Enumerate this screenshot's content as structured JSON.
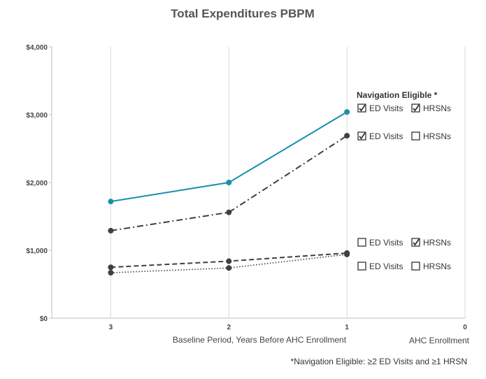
{
  "chart_data": {
    "type": "line",
    "title": "Total Expenditures PBPM",
    "xlabel": "Baseline Period, Years Before AHC Enrollment",
    "xlabel_secondary": "AHC Enrollment",
    "x_ticks": [
      "3",
      "2",
      "1",
      "0"
    ],
    "x_values": [
      3,
      2,
      1
    ],
    "xlim": [
      3.5,
      0
    ],
    "ylim": [
      0,
      4000
    ],
    "y_ticks": [
      {
        "value": 0,
        "label": "$0"
      },
      {
        "value": 1000,
        "label": "$1,000"
      },
      {
        "value": 2000,
        "label": "$2,000"
      },
      {
        "value": 3000,
        "label": "$3,000"
      },
      {
        "value": 4000,
        "label": "$4,000"
      }
    ],
    "grid": "vertical",
    "legend_title": "Navigation Eligible *",
    "series": [
      {
        "name": "ED Visits + HRSNs",
        "ed_visits": true,
        "hrsns": true,
        "style": "solid",
        "color": "#1a8fae",
        "values": [
          1720,
          2000,
          3040
        ],
        "legend": {
          "ed": "ED Visits",
          "hrsn": "HRSNs"
        }
      },
      {
        "name": "ED Visits only",
        "ed_visits": true,
        "hrsns": false,
        "style": "dashdot",
        "color": "#404040",
        "values": [
          1290,
          1560,
          2690
        ],
        "legend": {
          "ed": "ED Visits",
          "hrsn": "HRSNs"
        }
      },
      {
        "name": "HRSNs only",
        "ed_visits": false,
        "hrsns": true,
        "style": "dashed",
        "color": "#404040",
        "values": [
          750,
          840,
          960
        ],
        "legend": {
          "ed": "ED Visits",
          "hrsn": "HRSNs"
        }
      },
      {
        "name": "Neither",
        "ed_visits": false,
        "hrsns": false,
        "style": "dotted",
        "color": "#404040",
        "values": [
          670,
          740,
          940
        ],
        "legend": {
          "ed": "ED Visits",
          "hrsn": "HRSNs"
        }
      }
    ],
    "footnote": "*Navigation Eligible: ≥2 ED Visits and ≥1 HRSN"
  }
}
